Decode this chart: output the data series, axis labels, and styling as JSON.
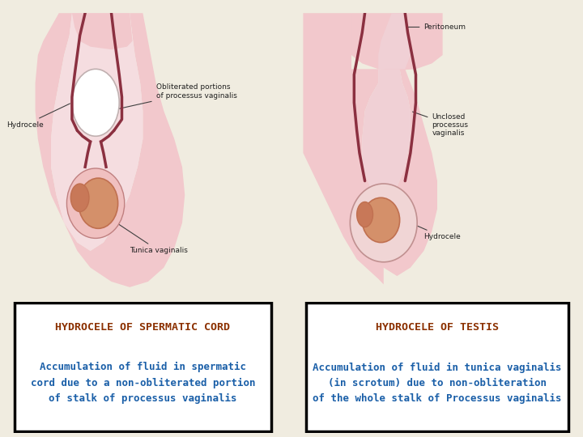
{
  "bg_color": "#f0ece0",
  "left_box": {
    "title": "HYDROCELE OF SPERMATIC CORD",
    "title_color": "#8B3000",
    "body_text": "Accumulation of fluid in spermatic\ncord due to a non-obliterated portion\nof stalk of processus vaginalis",
    "body_color": "#1a5fa8",
    "box_color": "#000000"
  },
  "right_box": {
    "title": "HYDROCELE OF TESTIS",
    "title_color": "#8B3000",
    "body_text": "Accumulation of fluid in tunica vaginalis\n(in scrotum) due to non-obliteration\nof the whole stalk of Processus vaginalis",
    "body_color": "#1a5fa8",
    "box_color": "#000000"
  },
  "img_bg": "#f5f0ee",
  "pink_light": "#f2c8cc",
  "pink_mid": "#e8a0a8",
  "pink_dark": "#d4788c",
  "cord_color": "#8B3040",
  "testis_color": "#d4906a",
  "testis_dark": "#c07050",
  "layout": {
    "fig_width": 7.2,
    "fig_height": 5.4,
    "dpi": 100
  }
}
